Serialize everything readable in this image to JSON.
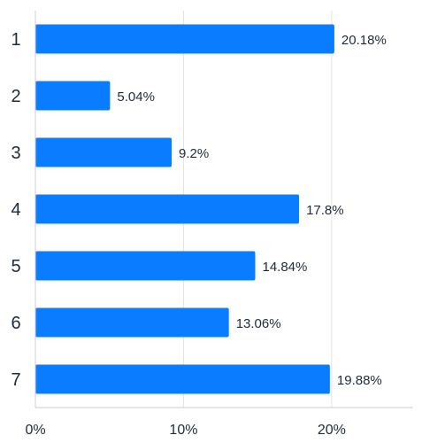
{
  "chart_data": {
    "type": "bar",
    "orientation": "horizontal",
    "categories": [
      "1",
      "2",
      "3",
      "4",
      "5",
      "6",
      "7"
    ],
    "values": [
      20.18,
      5.04,
      9.2,
      17.8,
      14.84,
      13.06,
      19.88
    ],
    "value_labels": [
      "20.18%",
      "5.04%",
      "9.2%",
      "17.8%",
      "14.84%",
      "13.06%",
      "19.88%"
    ],
    "title": "",
    "xlabel": "",
    "ylabel": "",
    "xlim": [
      0,
      25.5
    ],
    "x_ticks": [
      0,
      10,
      20
    ],
    "x_tick_labels": [
      "0%",
      "10%",
      "20%"
    ],
    "grid": "vertical",
    "legend": "none",
    "colors": {
      "bar": "#0a7cff",
      "gridline": "#e3e3e3",
      "axis": "#cccccc",
      "text": "#1d2b3a"
    }
  }
}
